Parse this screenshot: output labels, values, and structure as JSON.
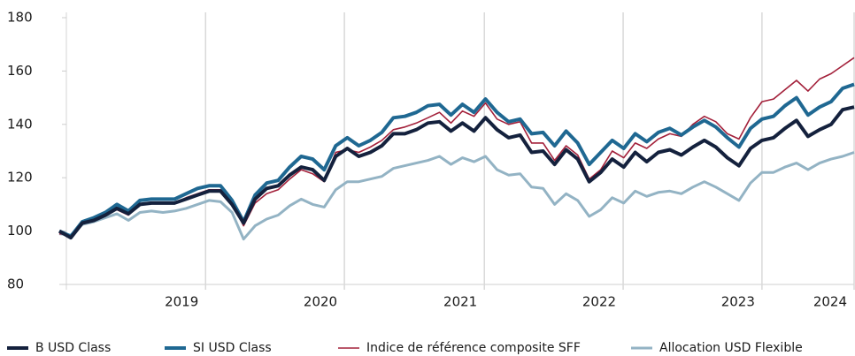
{
  "chart_data": {
    "type": "line",
    "x": [
      0,
      1,
      2,
      3,
      4,
      5,
      6,
      7,
      8,
      9,
      10,
      11,
      12,
      13,
      14,
      15,
      16,
      17,
      18,
      19,
      20,
      21,
      22,
      23,
      24,
      25,
      26,
      27,
      28,
      29,
      30,
      31,
      32,
      33,
      34,
      35,
      36,
      37,
      38,
      39,
      40,
      41,
      42,
      43,
      44,
      45,
      46,
      47,
      48,
      49,
      50,
      51,
      52,
      53,
      54,
      55,
      56,
      57,
      58,
      59,
      60,
      61,
      62,
      63,
      64,
      65,
      66,
      67,
      68,
      69
    ],
    "xlim": [
      0,
      69
    ],
    "xticks": [
      {
        "value": 12.7,
        "label": "2019"
      },
      {
        "value": 24.75,
        "label": "2020"
      },
      {
        "value": 36.9,
        "label": "2021"
      },
      {
        "value": 48.95,
        "label": "2022"
      },
      {
        "value": 61,
        "label": "2023"
      },
      {
        "value": 69,
        "label": "2024"
      }
    ],
    "ylim": [
      80,
      180
    ],
    "yticks": [
      80,
      100,
      120,
      140,
      160,
      180
    ],
    "grid": true,
    "legend": "bottom",
    "series": [
      {
        "name": "Allocation USD Flexible",
        "color": "#93b3c4",
        "values": [
          99,
          98.5,
          102.5,
          103.5,
          105,
          106.5,
          104,
          107,
          107.5,
          107,
          107.5,
          108.5,
          110,
          111.5,
          111,
          107,
          97,
          102,
          104.5,
          106,
          109.5,
          112,
          110,
          109,
          115.5,
          118.5,
          118.5,
          119.5,
          120.5,
          123.5,
          124.5,
          125.5,
          126.5,
          128,
          125,
          127.5,
          126,
          128,
          123,
          121,
          121.5,
          116.5,
          116,
          110,
          114,
          111.5,
          105.5,
          108,
          112.5,
          110.5,
          115,
          113,
          114.5,
          115,
          114,
          116.5,
          118.5,
          116.5,
          114,
          111.5,
          118,
          122,
          122,
          124,
          125.5,
          123,
          125.5,
          127,
          128,
          129.5
        ]
      },
      {
        "name": "Indice de référence composite SFF",
        "color": "#a3203a",
        "values": [
          99,
          98.5,
          103,
          104.5,
          106,
          108,
          106,
          110,
          110.5,
          110.5,
          110.5,
          112.5,
          114,
          115.5,
          115.5,
          110.5,
          102,
          110.5,
          114,
          115.5,
          119.5,
          123,
          121.5,
          118.5,
          129.5,
          130.5,
          129.5,
          131.5,
          134,
          138,
          139,
          140.5,
          142.5,
          144.5,
          140.5,
          145,
          143,
          148,
          142,
          140,
          141,
          133,
          133,
          126.5,
          132,
          128.5,
          119.5,
          123,
          130,
          127.5,
          133,
          131,
          134.5,
          136.5,
          135.5,
          140,
          143,
          141,
          136.5,
          134.5,
          142.5,
          148.5,
          149.5,
          153,
          156.5,
          152.5,
          157,
          159,
          162,
          165
        ]
      },
      {
        "name": "SI USD Class",
        "color": "#1f6892",
        "values": [
          100,
          98,
          103.5,
          105,
          107,
          110,
          107.5,
          111.5,
          112,
          112,
          112,
          114,
          116,
          117,
          117,
          111.5,
          103.5,
          113.5,
          118,
          119,
          124,
          128,
          127,
          123,
          132,
          135,
          132,
          134,
          137,
          142.5,
          143,
          144.5,
          147,
          147.5,
          143.5,
          147.5,
          144.5,
          149.5,
          144.5,
          141,
          142,
          136.5,
          137,
          132,
          137.5,
          133,
          125,
          129.5,
          134,
          131,
          136.5,
          133.5,
          137,
          138.5,
          136,
          139,
          141.5,
          139,
          135,
          131.5,
          138.5,
          142,
          143,
          147,
          150,
          143.5,
          146.5,
          148.5,
          153.5,
          155
        ]
      },
      {
        "name": "B USD Class",
        "color": "#14213d",
        "values": [
          100,
          97.5,
          103,
          104,
          106,
          108.5,
          106.5,
          110,
          110.5,
          110.5,
          110.5,
          112,
          113.5,
          115,
          115,
          110,
          103,
          112,
          116,
          117,
          121,
          124,
          123,
          119,
          128,
          131,
          128,
          129.5,
          132,
          136.5,
          136.5,
          138,
          140.5,
          141,
          137.5,
          140.5,
          137.5,
          142.5,
          138,
          135,
          136,
          129.5,
          130,
          125,
          130.5,
          127,
          118.5,
          122,
          127,
          124,
          129.5,
          126,
          129.5,
          130.5,
          128.5,
          131.5,
          134,
          131.5,
          127.5,
          124.5,
          131,
          134,
          135,
          138.5,
          141.5,
          135.5,
          138,
          140,
          145.5,
          146.5
        ]
      }
    ]
  }
}
